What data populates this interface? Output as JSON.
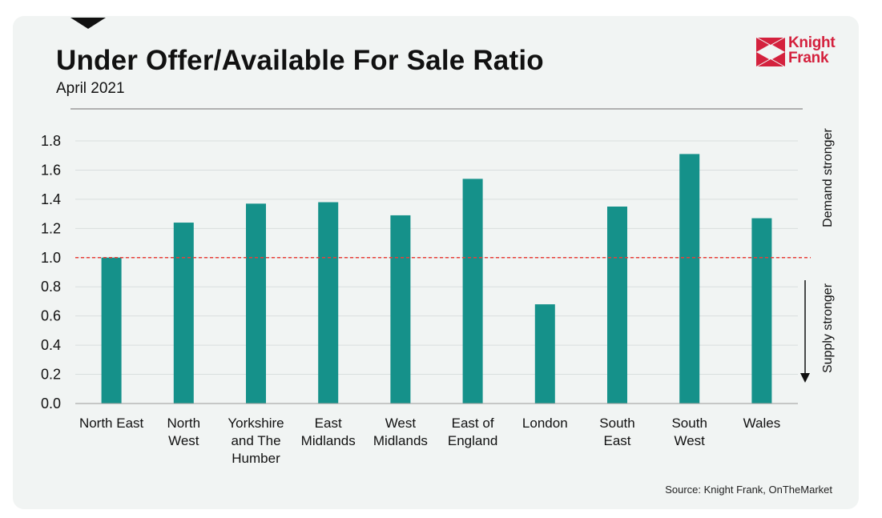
{
  "title": "Under Offer/Available For Sale Ratio",
  "subtitle": "April 2021",
  "source": "Source: Knight Frank, OnTheMarket",
  "logo": {
    "line1": "Knight",
    "line2": "Frank",
    "color": "#d4213d"
  },
  "side_labels": {
    "top": "Demand  stronger",
    "bottom": "Supply stronger"
  },
  "colors": {
    "bar": "#15918a",
    "reference_line": "#e8403a",
    "grid": "#d9dede",
    "header_rule": "#9a9a9a"
  },
  "chart_data": {
    "type": "bar",
    "categories": [
      [
        "North East"
      ],
      [
        "North",
        "West"
      ],
      [
        "Yorkshire",
        "and The",
        "Humber"
      ],
      [
        "East",
        "Midlands"
      ],
      [
        "West",
        "Midlands"
      ],
      [
        "East of",
        "England"
      ],
      [
        "London"
      ],
      [
        "South",
        "East"
      ],
      [
        "South",
        "West"
      ],
      [
        "Wales"
      ]
    ],
    "values": [
      1.0,
      1.24,
      1.37,
      1.38,
      1.29,
      1.54,
      0.68,
      1.35,
      1.71,
      1.27
    ],
    "yticks": [
      "0.0",
      "0.2",
      "0.4",
      "0.6",
      "0.8",
      "1.0",
      "1.2",
      "1.4",
      "1.6",
      "1.8"
    ],
    "ylim": [
      0,
      1.8
    ],
    "reference_line": 1.0,
    "grid": true,
    "legend": "none"
  }
}
